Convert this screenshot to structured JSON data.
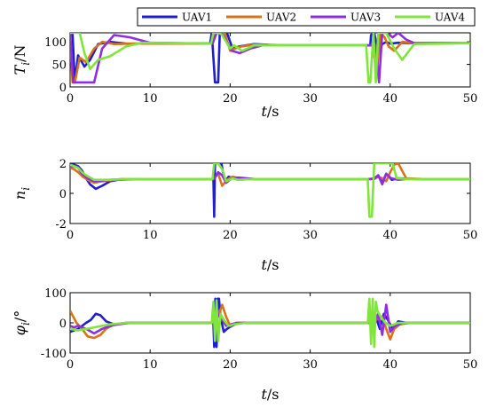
{
  "legend": {
    "entries": [
      {
        "name": "UAV1",
        "color": "#1f1fd0"
      },
      {
        "name": "UAV2",
        "color": "#d9731a"
      },
      {
        "name": "UAV3",
        "color": "#8e2ee0"
      },
      {
        "name": "UAV4",
        "color": "#7fe53a"
      }
    ]
  },
  "chart_data": [
    {
      "type": "line",
      "ylabel_main": "T",
      "ylabel_sub": "i",
      "ylabel_unit": "/N",
      "xlabel_var": "t",
      "xlabel_unit": "/s",
      "xlim": [
        0,
        50
      ],
      "ylim": [
        0,
        120
      ],
      "xticks": [
        0,
        10,
        20,
        30,
        40,
        50
      ],
      "yticks": [
        0,
        50,
        100
      ],
      "series": [
        {
          "name": "UAV1",
          "x": [
            0,
            0.3,
            0.6,
            1.0,
            1.8,
            2.5,
            3.5,
            5,
            7,
            17.5,
            17.7,
            18.1,
            18.5,
            18.7,
            19.0,
            19.6,
            20.3,
            21.2,
            23,
            26,
            37.5,
            37.6,
            38.0,
            38.5,
            39.0,
            39.5,
            40.0,
            41.0,
            43,
            50
          ],
          "y": [
            120,
            120,
            10,
            70,
            45,
            60,
            95,
            100,
            96,
            96,
            120,
            10,
            10,
            120,
            120,
            120,
            85,
            90,
            95,
            92,
            92,
            115,
            120,
            75,
            95,
            100,
            96,
            98,
            97,
            97
          ]
        },
        {
          "name": "UAV2",
          "x": [
            0,
            0.3,
            0.6,
            1.2,
            2.0,
            3.0,
            4.0,
            5.5,
            8,
            17.8,
            18.2,
            18.7,
            19.3,
            20.0,
            20.6,
            21.5,
            23,
            26,
            37.8,
            38.3,
            38.8,
            39.3,
            39.8,
            40.5,
            41.5,
            43,
            50
          ],
          "y": [
            120,
            10,
            10,
            65,
            55,
            85,
            100,
            95,
            96,
            96,
            120,
            120,
            120,
            80,
            85,
            90,
            94,
            92,
            92,
            30,
            120,
            110,
            90,
            80,
            100,
            97,
            97
          ]
        },
        {
          "name": "UAV3",
          "x": [
            0,
            0.4,
            1.2,
            1.8,
            3.0,
            4.0,
            5.5,
            7.5,
            10,
            17.8,
            18.3,
            18.9,
            19.4,
            20.2,
            21.2,
            22.5,
            24,
            38.2,
            38.6,
            39.0,
            39.6,
            40.3,
            41.0,
            42,
            43,
            50
          ],
          "y": [
            120,
            10,
            10,
            10,
            10,
            85,
            115,
            110,
            98,
            96,
            120,
            120,
            105,
            80,
            75,
            85,
            92,
            92,
            10,
            120,
            120,
            110,
            120,
            105,
            97,
            97
          ]
        },
        {
          "name": "UAV4",
          "x": [
            0,
            0.3,
            1.2,
            1.8,
            2.5,
            3.5,
            5,
            7,
            9,
            17.6,
            17.9,
            18.2,
            18.6,
            19.0,
            20.0,
            20.5,
            21.5,
            23,
            26,
            37.0,
            37.3,
            37.5,
            37.9,
            38.2,
            38.5,
            39.5,
            40.5,
            41.5,
            43,
            50
          ],
          "y": [
            120,
            120,
            120,
            75,
            40,
            60,
            68,
            90,
            98,
            96,
            120,
            120,
            120,
            115,
            85,
            92,
            80,
            92,
            92,
            92,
            10,
            10,
            120,
            10,
            120,
            120,
            85,
            60,
            95,
            97
          ]
        }
      ]
    },
    {
      "type": "line",
      "ylabel_main": "n",
      "ylabel_sub": "i",
      "ylabel_unit": "",
      "xlabel_var": "t",
      "xlabel_unit": "/s",
      "xlim": [
        0,
        50
      ],
      "ylim": [
        -2,
        2
      ],
      "xticks": [
        0,
        10,
        20,
        30,
        40,
        50
      ],
      "yticks": [
        -2,
        0,
        2
      ],
      "series": [
        {
          "name": "UAV1",
          "x": [
            0,
            0.5,
            1.0,
            1.5,
            2.0,
            2.5,
            3.2,
            4.0,
            5.0,
            6.0,
            8,
            10,
            17.9,
            18.0,
            18.1,
            18.2,
            18.4,
            18.9,
            19.1,
            19.4,
            19.8,
            20.5,
            22,
            25,
            37.5,
            38.0,
            38.5,
            39.0,
            39.5,
            40.2,
            41,
            43,
            50
          ],
          "y": [
            1.9,
            1.9,
            1.8,
            1.5,
            1.0,
            0.6,
            0.3,
            0.5,
            0.8,
            0.9,
            0.95,
            0.95,
            0.95,
            -1.55,
            2.0,
            2.0,
            2.0,
            2.0,
            1.4,
            0.8,
            1.1,
            1.0,
            0.95,
            0.95,
            0.95,
            1.0,
            1.2,
            0.7,
            1.3,
            0.9,
            1.0,
            0.95,
            0.95
          ]
        },
        {
          "name": "UAV2",
          "x": [
            0,
            0.5,
            1.0,
            1.6,
            2.2,
            3.0,
            4.0,
            5.5,
            7,
            10,
            17.9,
            18.5,
            19.0,
            19.6,
            20.3,
            21.2,
            23,
            26,
            38.0,
            38.5,
            39.0,
            39.5,
            40.0,
            40.5,
            41.0,
            42,
            44,
            50
          ],
          "y": [
            1.7,
            1.6,
            1.4,
            1.1,
            0.9,
            0.7,
            0.8,
            0.9,
            0.95,
            0.95,
            0.95,
            1.3,
            0.5,
            0.9,
            1.1,
            1.0,
            0.95,
            0.95,
            0.95,
            1.1,
            1.0,
            0.8,
            1.4,
            1.9,
            2.0,
            1.0,
            0.95,
            0.95
          ]
        },
        {
          "name": "UAV3",
          "x": [
            0,
            0.5,
            1.0,
            1.5,
            2.2,
            3.0,
            4.0,
            5,
            7,
            10,
            18.0,
            18.5,
            19.0,
            19.5,
            20.2,
            21.0,
            23,
            26,
            38.0,
            38.5,
            39.0,
            39.5,
            40.1,
            41.0,
            42,
            44,
            50
          ],
          "y": [
            1.8,
            1.8,
            1.7,
            1.3,
            1.0,
            0.8,
            0.85,
            0.9,
            0.95,
            0.95,
            0.95,
            1.4,
            1.2,
            0.7,
            1.0,
            1.05,
            0.95,
            0.95,
            0.95,
            1.2,
            0.6,
            1.3,
            1.0,
            0.9,
            0.95,
            0.95,
            0.95
          ]
        },
        {
          "name": "UAV4",
          "x": [
            0,
            0.5,
            1.0,
            1.5,
            2.0,
            3.0,
            4.0,
            5,
            7,
            10,
            17.8,
            18.0,
            18.2,
            18.5,
            19.0,
            19.5,
            20.3,
            21.0,
            23,
            26,
            37.2,
            37.4,
            37.7,
            38.0,
            38.2,
            38.5,
            39.0,
            39.6,
            40.3,
            40.8,
            42,
            44,
            50
          ],
          "y": [
            1.9,
            1.8,
            1.7,
            1.4,
            1.2,
            0.9,
            0.9,
            0.9,
            0.95,
            0.95,
            0.95,
            2.0,
            2.0,
            2.0,
            1.6,
            0.8,
            1.0,
            0.9,
            0.95,
            0.95,
            0.95,
            -1.55,
            -1.55,
            2.0,
            2.0,
            2.0,
            2.0,
            2.0,
            2.0,
            1.0,
            0.95,
            0.95,
            0.95
          ]
        }
      ]
    },
    {
      "type": "line",
      "ylabel_main": "φ",
      "ylabel_sub": "i",
      "ylabel_unit": "/°",
      "xlabel_var": "t",
      "xlabel_unit": "/s",
      "xlim": [
        0,
        50
      ],
      "ylim": [
        -100,
        100
      ],
      "xticks": [
        0,
        10,
        20,
        30,
        40,
        50
      ],
      "yticks": [
        -100,
        0,
        100
      ],
      "series": [
        {
          "name": "UAV1",
          "x": [
            0,
            0.5,
            1.0,
            1.5,
            2.0,
            2.6,
            3.2,
            3.8,
            4.5,
            5.5,
            7,
            10,
            17.9,
            18.0,
            18.15,
            18.3,
            18.45,
            18.6,
            18.8,
            19.2,
            19.6,
            20.2,
            21,
            22,
            25,
            37.8,
            38.2,
            38.7,
            39.2,
            39.7,
            40.3,
            41,
            42,
            44,
            50
          ],
          "y": [
            -30,
            -25,
            -20,
            -10,
            0,
            10,
            30,
            25,
            5,
            -5,
            0,
            0,
            0,
            -80,
            80,
            -80,
            80,
            80,
            20,
            -30,
            -20,
            -10,
            0,
            0,
            0,
            0,
            20,
            -20,
            30,
            10,
            -20,
            5,
            0,
            0,
            0
          ]
        },
        {
          "name": "UAV2",
          "x": [
            0,
            0.3,
            0.8,
            1.5,
            2.2,
            3.0,
            3.8,
            4.5,
            5.5,
            7,
            10,
            18.0,
            18.5,
            19.0,
            19.5,
            20.0,
            20.8,
            22,
            25,
            38.0,
            38.5,
            39.0,
            39.5,
            40.0,
            40.5,
            41.2,
            42.5,
            44,
            50
          ],
          "y": [
            40,
            25,
            0,
            -20,
            -45,
            -50,
            -40,
            -20,
            -5,
            0,
            0,
            0,
            20,
            60,
            20,
            -10,
            0,
            0,
            0,
            0,
            20,
            20,
            -20,
            -55,
            -20,
            -5,
            0,
            0,
            0
          ]
        },
        {
          "name": "UAV3",
          "x": [
            0,
            0.5,
            1.0,
            2.0,
            3.0,
            4.0,
            5.0,
            6.0,
            7.5,
            10,
            18.0,
            18.5,
            19.0,
            19.5,
            20.1,
            20.8,
            22,
            25,
            38.0,
            38.5,
            39.0,
            39.5,
            40.0,
            40.6,
            41.5,
            43,
            50
          ],
          "y": [
            -10,
            -15,
            -10,
            -20,
            -35,
            -20,
            -10,
            -5,
            0,
            0,
            0,
            30,
            10,
            -10,
            -5,
            0,
            0,
            0,
            0,
            30,
            -40,
            60,
            -30,
            -10,
            0,
            0,
            0
          ]
        },
        {
          "name": "UAV4",
          "x": [
            0,
            1,
            2,
            3,
            4,
            5,
            7,
            10,
            17.7,
            17.9,
            18.1,
            18.3,
            18.5,
            18.8,
            19.2,
            19.8,
            20.5,
            22,
            25,
            37.2,
            37.4,
            37.6,
            37.8,
            38.0,
            38.2,
            38.4,
            38.8,
            39.4,
            40.0,
            41,
            43,
            50
          ],
          "y": [
            -20,
            -25,
            -20,
            -15,
            -10,
            -5,
            0,
            0,
            0,
            70,
            -60,
            75,
            -60,
            30,
            10,
            -10,
            -5,
            0,
            0,
            0,
            80,
            -70,
            80,
            -80,
            70,
            40,
            20,
            0,
            -10,
            0,
            0,
            0
          ]
        }
      ]
    }
  ]
}
